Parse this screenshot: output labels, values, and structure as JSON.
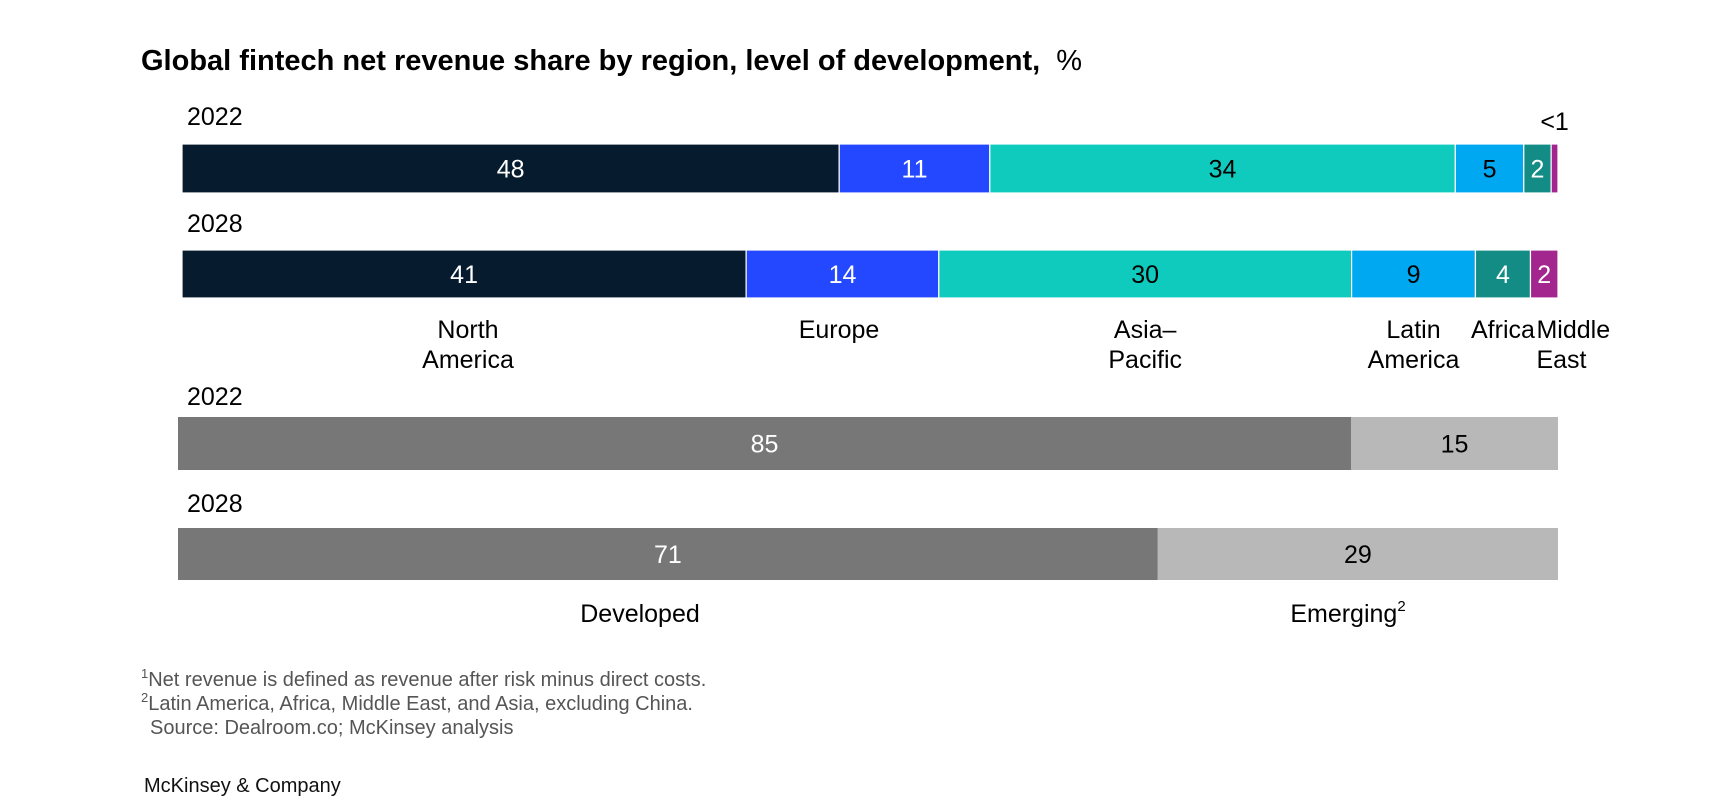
{
  "title": {
    "main": "Global fintech net revenue share by region, level of development,",
    "unit": "%"
  },
  "chart_data": [
    {
      "type": "bar",
      "orientation": "horizontal",
      "stacked": true,
      "name": "region",
      "rows": [
        "2022",
        "2028"
      ],
      "series": [
        {
          "name": "North America",
          "label_lines": [
            "North",
            "America"
          ],
          "color": "#061C2E",
          "values": [
            48,
            41
          ],
          "value_labels": [
            "48",
            "41"
          ],
          "label_color": "#ffffff"
        },
        {
          "name": "Europe",
          "label_lines": [
            "Europe"
          ],
          "color": "#2448FF",
          "values": [
            11,
            14
          ],
          "value_labels": [
            "11",
            "14"
          ],
          "label_color": "#ffffff"
        },
        {
          "name": "Asia–Pacific",
          "label_lines": [
            "Asia–",
            "Pacific"
          ],
          "color": "#0ECBBE",
          "values": [
            34,
            30
          ],
          "value_labels": [
            "34",
            "30"
          ],
          "label_color": "#000000"
        },
        {
          "name": "Latin America",
          "label_lines": [
            "Latin",
            "America"
          ],
          "color": "#00A7F1",
          "values": [
            5,
            9
          ],
          "value_labels": [
            "5",
            "9"
          ],
          "label_color": "#000000"
        },
        {
          "name": "Africa",
          "label_lines": [
            "Africa"
          ],
          "color": "#138C86",
          "values": [
            2,
            4
          ],
          "value_labels": [
            "2",
            "4"
          ],
          "label_color": "#ffffff"
        },
        {
          "name": "Middle East",
          "label_lines": [
            "Middle",
            "East"
          ],
          "color": "#A3268F",
          "values": [
            0.5,
            2
          ],
          "value_labels": [
            "<1",
            "2"
          ],
          "label_color": "#ffffff"
        }
      ],
      "xlim": [
        0,
        100
      ]
    },
    {
      "type": "bar",
      "orientation": "horizontal",
      "stacked": true,
      "name": "development",
      "rows": [
        "2022",
        "2028"
      ],
      "series": [
        {
          "name": "Developed",
          "label": "Developed",
          "sup": "",
          "color": "#777777",
          "values": [
            85,
            71
          ],
          "value_labels": [
            "85",
            "71"
          ],
          "label_color": "#ffffff"
        },
        {
          "name": "Emerging",
          "label": "Emerging",
          "sup": "2",
          "color": "#B8B8B8",
          "values": [
            15,
            29
          ],
          "value_labels": [
            "15",
            "29"
          ],
          "label_color": "#000000"
        }
      ],
      "xlim": [
        0,
        100
      ]
    }
  ],
  "footnotes": [
    {
      "sup": "1",
      "text": "Net revenue is defined as revenue after risk minus direct costs."
    },
    {
      "sup": "2",
      "text": "Latin America, Africa, Middle East, and Asia, excluding China."
    },
    {
      "sup": "",
      "text": "Source: Dealroom.co; McKinsey analysis"
    }
  ],
  "brand": "McKinsey & Company"
}
